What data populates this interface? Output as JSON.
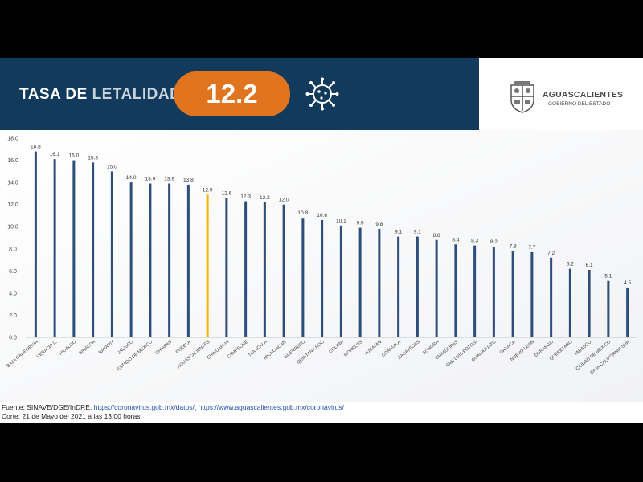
{
  "header": {
    "title_bold": "TASA DE ",
    "title_light": "LETALIDAD",
    "rate_value": "12.2",
    "virus_icon": "coronavirus-icon",
    "header_color": "#113a5c",
    "pill_color": "#e0741f"
  },
  "logo": {
    "name": "AGUASCALIENTES",
    "subtitle": "GOBIERNO DEL ESTADO",
    "icon": "coat-of-arms-icon"
  },
  "chart_data": {
    "type": "bar",
    "ylim": [
      0,
      18
    ],
    "yticks": [
      "0.0",
      "2.0",
      "4.0",
      "6.0",
      "8.0",
      "10.0",
      "12.0",
      "14.0",
      "16.0",
      "18.0"
    ],
    "grid": false,
    "categories": [
      "BAJA CALIFORNIA",
      "VERACRUZ",
      "HIDALGO",
      "SINALOA",
      "NAYARIT",
      "JALISCO",
      "ESTADO DE MEXICO",
      "CHIAPAS",
      "PUEBLA",
      "AGUASCALIENTES",
      "CHIHUAHUA",
      "CAMPECHE",
      "TLAXCALA",
      "MICHOACAN",
      "GUERRERO",
      "QUINTANA ROO",
      "COLIMA",
      "MORELOS",
      "YUCATAN",
      "COAHUILA",
      "ZACATECAS",
      "SONORA",
      "TAMAULIPAS",
      "SAN LUIS POTOSI",
      "GUANAJUATO",
      "OAXACA",
      "NUEVO LEON",
      "DURANGO",
      "QUERETARO",
      "TABASCO",
      "CIUDAD DE MEXICO",
      "BAJA CALIFORNIA SUR"
    ],
    "values": [
      16.8,
      16.1,
      16.0,
      15.8,
      15.0,
      14.0,
      13.9,
      13.9,
      13.8,
      12.9,
      12.6,
      12.3,
      12.2,
      12.0,
      10.8,
      10.6,
      10.1,
      9.9,
      9.8,
      9.1,
      9.1,
      8.8,
      8.4,
      8.3,
      8.2,
      7.8,
      7.7,
      7.2,
      6.2,
      6.1,
      5.1,
      4.5
    ],
    "value_labels": [
      "16.8",
      "16.1",
      "16.0",
      "15.8",
      "15.0",
      "14.0",
      "13.9",
      "13.9",
      "13.8",
      "12.9",
      "12.6",
      "12.3",
      "12.2",
      "12.0",
      "10.8",
      "10.6",
      "10.1",
      "9.9",
      "9.8",
      "9.1",
      "9.1",
      "8.8",
      "8.4",
      "8.3",
      "8.2",
      "7.8",
      "7.7",
      "7.2",
      "6.2",
      "6.1",
      "5.1",
      "4.5"
    ],
    "highlight_category": "AGUASCALIENTES",
    "bar_color": "#2d4e7a",
    "highlight_color": "#f4b400"
  },
  "footer": {
    "source_prefix": "Fuente: SINAVE/DGE/InDRE. ",
    "link1": "https://coronavirus.gob.mx/datos/",
    "separator": ", ",
    "link2": "https://www.aguascalientes.gob.mx/coronavirus/",
    "cutoff": "Corte: 21 de Mayo del 2021 a las 13:00 horas"
  }
}
